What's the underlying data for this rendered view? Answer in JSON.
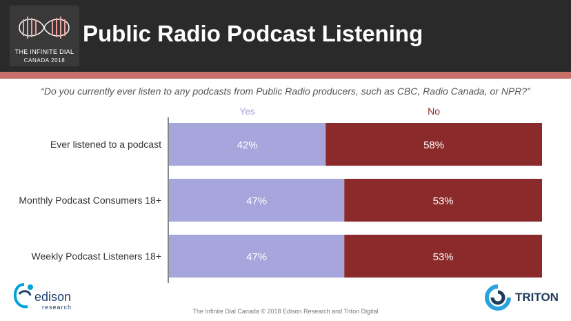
{
  "header": {
    "title": "Public Radio Podcast Listening",
    "logo_line1": "THE INFINITE DIAL",
    "logo_line2": "CANADA 2018"
  },
  "question": "“Do you currently ever listen to any podcasts from Public Radio producers, such as CBC, Radio Canada, or NPR?”",
  "footer": {
    "note": "The Infinite Dial Canada  © 2018 Edison Research and Triton Digital",
    "edison_word": "edison",
    "edison_sub": "research",
    "triton_word": "TRITON"
  },
  "colors": {
    "yes": "#a6a6dc",
    "no": "#8b2a2a",
    "header_bg": "#2b2a2b",
    "accent": "#c9706b"
  },
  "chart_data": {
    "type": "bar",
    "orientation": "horizontal",
    "stacked": true,
    "categories": [
      "Ever listened to a podcast",
      "Monthly Podcast Consumers 18+",
      "Weekly Podcast Listeners 18+"
    ],
    "series": [
      {
        "name": "Yes",
        "values": [
          42,
          47,
          47
        ],
        "labels": [
          "42%",
          "47%",
          "47%"
        ]
      },
      {
        "name": "No",
        "values": [
          58,
          53,
          53
        ],
        "labels": [
          "58%",
          "53%",
          "53%"
        ]
      }
    ],
    "xlim": [
      0,
      100
    ],
    "unit": "%"
  }
}
